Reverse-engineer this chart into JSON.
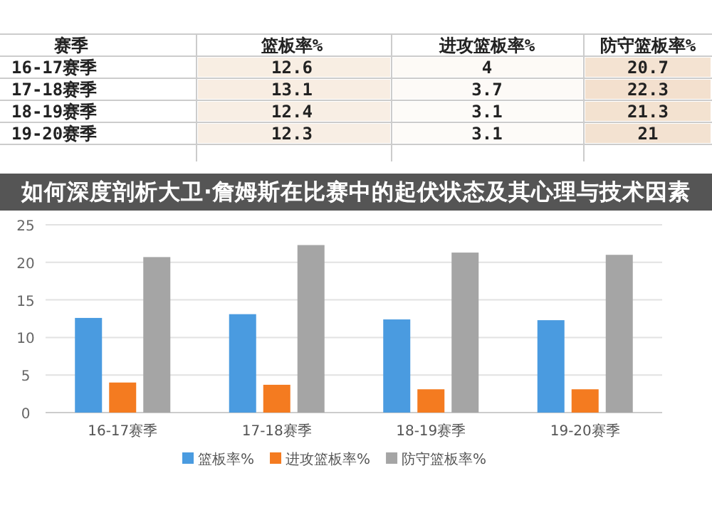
{
  "chart_data": [
    {
      "type": "heatmap",
      "annotations": [
        "赛季"
      ],
      "categories": [
        "篮板率%",
        "进攻篮板率%",
        "防守篮板率%"
      ],
      "y_categories": [
        "16-17赛季",
        "17-18赛季",
        "18-19赛季",
        "19-20赛季"
      ],
      "cells": [
        [
          12.6,
          4,
          20.7
        ],
        [
          13.1,
          3.7,
          22.3
        ],
        [
          12.4,
          3.1,
          21.3
        ],
        [
          12.3,
          3.1,
          21
        ]
      ],
      "cell_labels": [
        [
          "12.6",
          "4",
          "20.7"
        ],
        [
          "13.1",
          "3.7",
          "22.3"
        ],
        [
          "12.4",
          "3.1",
          "21.3"
        ],
        [
          "12.3",
          "3.1",
          "21"
        ]
      ]
    },
    {
      "type": "bar",
      "title": "如何深度剖析大卫·詹姆斯在比赛中的起伏状态及其心理与技术因素",
      "categories": [
        "16-17赛季",
        "17-18赛季",
        "18-19赛季",
        "19-20赛季"
      ],
      "series": [
        {
          "name": "篮板率%",
          "color": "#4a9be0",
          "values": [
            12.6,
            13.1,
            12.4,
            12.3
          ]
        },
        {
          "name": "进攻篮板率%",
          "color": "#f47b20",
          "values": [
            4,
            3.7,
            3.1,
            3.1
          ]
        },
        {
          "name": "防守篮板率%",
          "color": "#a5a5a5",
          "values": [
            20.7,
            22.3,
            21.3,
            21
          ]
        }
      ],
      "ylim": [
        0,
        25
      ],
      "yticks": [
        0,
        5,
        10,
        15,
        20,
        25
      ],
      "grid": "y",
      "legend": "bottom"
    }
  ]
}
